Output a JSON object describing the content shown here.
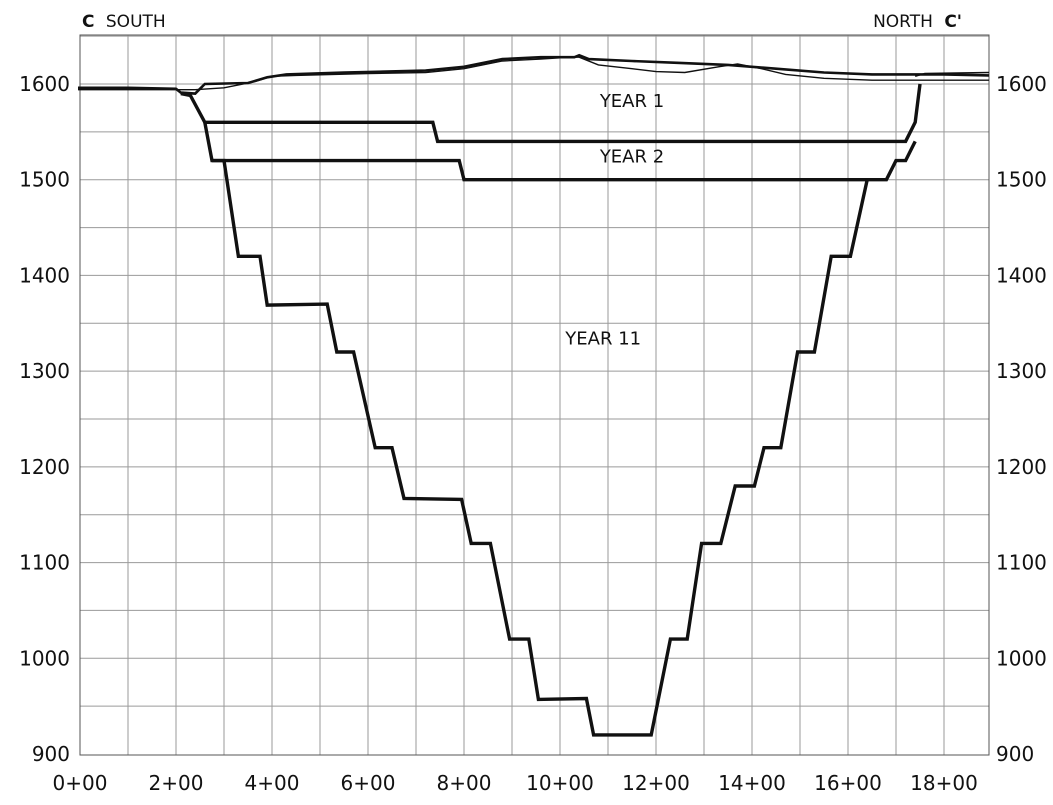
{
  "section": {
    "left_marker": "C",
    "left_label": "SOUTH",
    "right_label": "NORTH",
    "right_marker": "C'"
  },
  "axes": {
    "x_ticks": [
      "0+00",
      "2+00",
      "4+00",
      "6+00",
      "8+00",
      "10+00",
      "12+00",
      "14+00",
      "16+00",
      "18+00"
    ],
    "y_ticks": [
      "900",
      "1000",
      "1100",
      "1200",
      "1300",
      "1400",
      "1500",
      "1600"
    ],
    "y_tick_values": [
      900,
      1000,
      1100,
      1200,
      1300,
      1400,
      1500,
      1600
    ]
  },
  "phase_labels": [
    {
      "key": "year1",
      "text": "YEAR 1",
      "x_station": 1150,
      "elev": 1576
    },
    {
      "key": "year2",
      "text": "YEAR 2",
      "x_station": 1150,
      "elev": 1518
    },
    {
      "key": "year11",
      "text": "YEAR 11",
      "x_station": 1090,
      "elev": 1328
    }
  ],
  "profiles": {
    "year1_bench": [
      [
        210,
        1590
      ],
      [
        230,
        1588
      ],
      [
        260,
        1560
      ],
      [
        735,
        1560
      ],
      [
        745,
        1540
      ],
      [
        1720,
        1540
      ],
      [
        1740,
        1560
      ],
      [
        1750,
        1600
      ]
    ],
    "year2_bench": [
      [
        260,
        1560
      ],
      [
        275,
        1520
      ],
      [
        790,
        1520
      ],
      [
        800,
        1500
      ],
      [
        1680,
        1500
      ],
      [
        1700,
        1520
      ],
      [
        1720,
        1520
      ],
      [
        1740,
        1540
      ]
    ],
    "year11_pit": [
      [
        275,
        1520
      ],
      [
        300,
        1520
      ],
      [
        330,
        1420
      ],
      [
        375,
        1420
      ],
      [
        390,
        1369
      ],
      [
        515,
        1370
      ],
      [
        535,
        1320
      ],
      [
        570,
        1320
      ],
      [
        615,
        1220
      ],
      [
        650,
        1220
      ],
      [
        675,
        1167
      ],
      [
        795,
        1166
      ],
      [
        815,
        1120
      ],
      [
        855,
        1120
      ],
      [
        895,
        1020
      ],
      [
        935,
        1020
      ],
      [
        955,
        957
      ],
      [
        1055,
        958
      ],
      [
        1070,
        920
      ],
      [
        1190,
        920
      ],
      [
        1230,
        1020
      ],
      [
        1265,
        1020
      ],
      [
        1295,
        1120
      ],
      [
        1335,
        1120
      ],
      [
        1365,
        1180
      ],
      [
        1405,
        1180
      ],
      [
        1425,
        1220
      ],
      [
        1460,
        1220
      ],
      [
        1495,
        1320
      ],
      [
        1530,
        1320
      ],
      [
        1565,
        1420
      ],
      [
        1605,
        1420
      ],
      [
        1640,
        1500
      ]
    ],
    "topo_heavy": [
      [
        -10,
        1596
      ],
      [
        100,
        1596
      ],
      [
        200,
        1595
      ],
      [
        210,
        1591
      ],
      [
        240,
        1590
      ],
      [
        260,
        1600
      ],
      [
        350,
        1601
      ],
      [
        390,
        1607
      ],
      [
        430,
        1610
      ],
      [
        550,
        1612
      ],
      [
        720,
        1614
      ],
      [
        800,
        1618
      ],
      [
        880,
        1626
      ],
      [
        960,
        1628
      ],
      [
        1010,
        1628
      ],
      [
        1030,
        1628
      ],
      [
        1040,
        1630
      ],
      [
        1060,
        1626
      ],
      [
        1150,
        1624
      ],
      [
        1250,
        1622
      ],
      [
        1350,
        1620
      ],
      [
        1450,
        1616
      ],
      [
        1550,
        1612
      ],
      [
        1650,
        1610
      ],
      [
        1750,
        1610
      ],
      [
        1800,
        1610
      ],
      [
        1900,
        1609
      ]
    ],
    "topo_light": [
      [
        -10,
        1594
      ],
      [
        150,
        1594
      ],
      [
        205,
        1594
      ],
      [
        240,
        1594
      ],
      [
        300,
        1596
      ],
      [
        360,
        1602
      ],
      [
        400,
        1608
      ],
      [
        450,
        1609
      ],
      [
        600,
        1611
      ],
      [
        720,
        1612
      ],
      [
        800,
        1616
      ],
      [
        880,
        1624
      ],
      [
        960,
        1626
      ],
      [
        1020,
        1628
      ],
      [
        1040,
        1628
      ],
      [
        1080,
        1620
      ],
      [
        1150,
        1616
      ],
      [
        1200,
        1613
      ],
      [
        1260,
        1612
      ],
      [
        1330,
        1618
      ],
      [
        1370,
        1621
      ],
      [
        1420,
        1616
      ],
      [
        1470,
        1610
      ],
      [
        1550,
        1606
      ],
      [
        1650,
        1604
      ],
      [
        1740,
        1604
      ],
      [
        1900,
        1604
      ]
    ],
    "topo_light_north": [
      [
        1740,
        1608
      ],
      [
        1760,
        1611
      ],
      [
        1900,
        1612
      ]
    ]
  }
}
